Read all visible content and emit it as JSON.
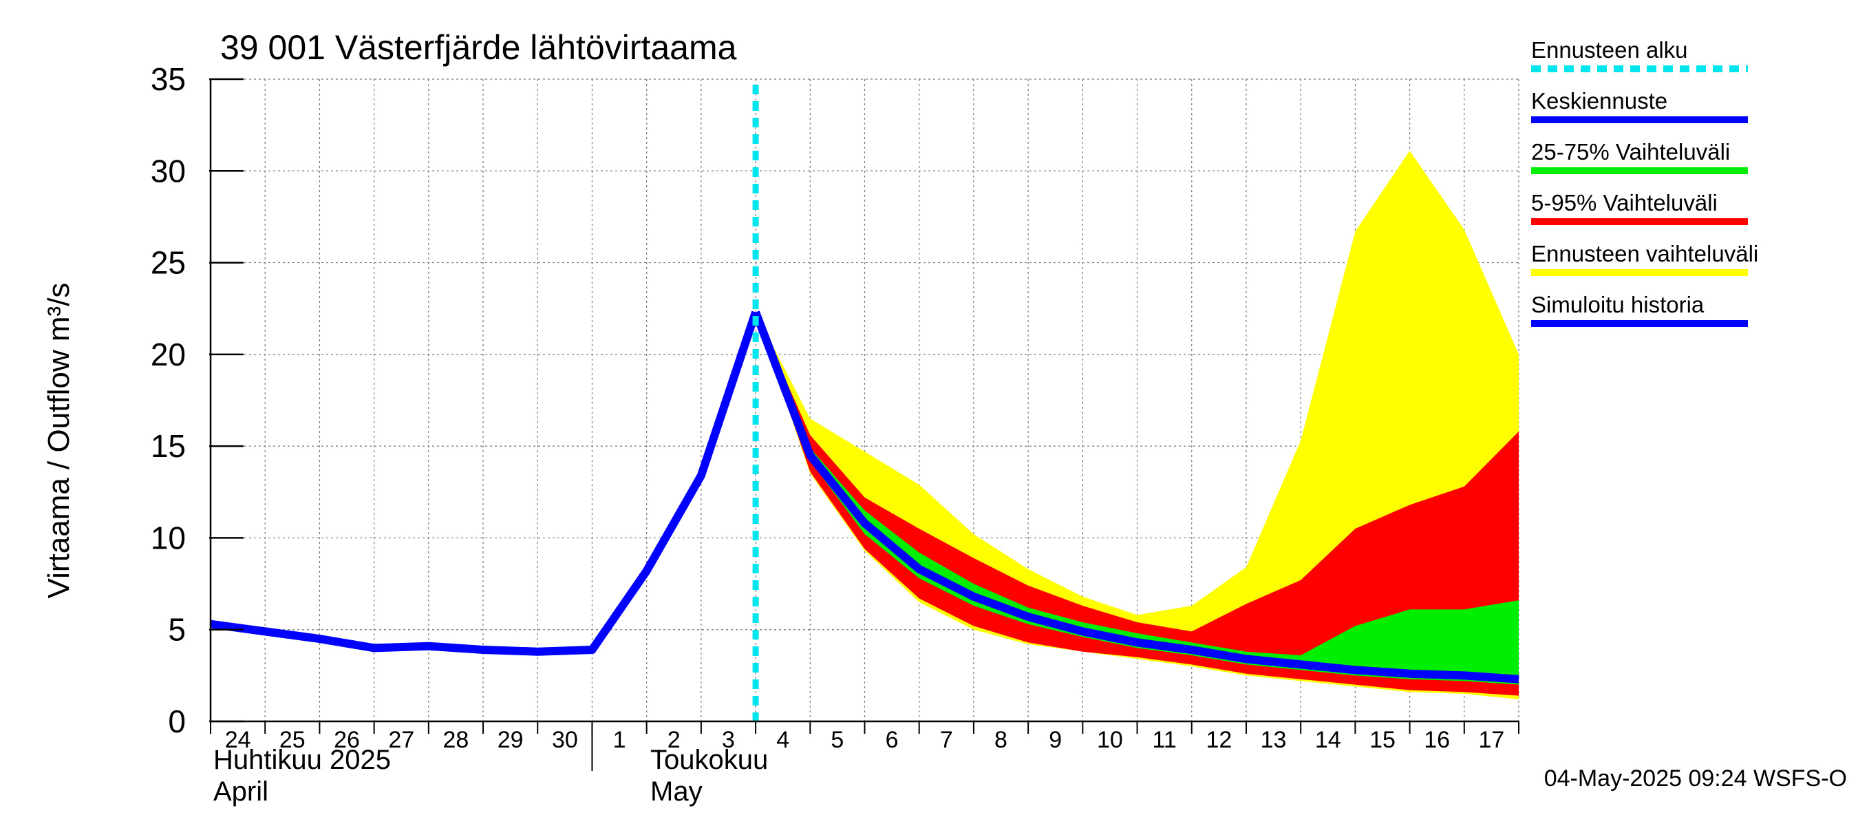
{
  "chart_data": {
    "type": "area",
    "title": "39 001 Västerfjärde lähtövirtaama",
    "ylabel": "Virtaama / Outflow    m³/s",
    "ylim": [
      0,
      35
    ],
    "yticks": [
      0,
      5,
      10,
      15,
      20,
      25,
      30,
      35
    ],
    "x_day_labels": [
      "24",
      "25",
      "26",
      "27",
      "28",
      "29",
      "30",
      "1",
      "2",
      "3",
      "4",
      "5",
      "6",
      "7",
      "8",
      "9",
      "10",
      "11",
      "12",
      "13",
      "14",
      "15",
      "16",
      "17"
    ],
    "month_labels": [
      {
        "fi": "Huhtikuu  2025",
        "en": "April",
        "start_day": 24
      },
      {
        "fi": "Toukokuu",
        "en": "May",
        "start_day": 3
      }
    ],
    "forecast_start_day_index": 10,
    "timestamp": "04-May-2025 09:24 WSFS-O",
    "legend": [
      {
        "label": "Ennusteen alku",
        "color": "#00e5ee",
        "style": "dashed"
      },
      {
        "label": "Keskiennuste",
        "color": "#0000ff",
        "style": "solid"
      },
      {
        "label": "25-75% Vaihteluväli",
        "color": "#00ee00",
        "style": "solid"
      },
      {
        "label": "5-95% Vaihteluväli",
        "color": "#ff0000",
        "style": "solid"
      },
      {
        "label": "Ennusteen vaihteluväli",
        "color": "#ffff00",
        "style": "solid"
      },
      {
        "label": "Simuloitu historia",
        "color": "#0000ff",
        "style": "solid"
      }
    ],
    "series": {
      "history": {
        "name": "Simuloitu historia",
        "x": [
          0,
          1,
          2,
          3,
          4,
          5,
          6,
          7,
          8,
          9,
          10
        ],
        "values": [
          5.3,
          4.9,
          4.5,
          4.0,
          4.1,
          3.9,
          3.8,
          3.9,
          8.2,
          13.4,
          22.3
        ]
      },
      "median": {
        "name": "Keskiennuste",
        "x": [
          10,
          11,
          12,
          13,
          14,
          15,
          16,
          17,
          18,
          19,
          20,
          21,
          22,
          23,
          24
        ],
        "values": [
          22.3,
          14.5,
          10.8,
          8.3,
          6.8,
          5.7,
          4.9,
          4.3,
          3.9,
          3.4,
          3.1,
          2.8,
          2.6,
          2.5,
          2.3
        ]
      },
      "range_full": {
        "name": "Ennusteen vaihteluväli",
        "x": [
          10,
          11,
          12,
          13,
          14,
          15,
          16,
          17,
          18,
          19,
          20,
          21,
          22,
          23,
          24
        ],
        "low": [
          22.3,
          13.5,
          9.3,
          6.5,
          5.0,
          4.2,
          3.8,
          3.4,
          3.0,
          2.5,
          2.2,
          1.9,
          1.6,
          1.5,
          1.2
        ],
        "high": [
          22.3,
          16.5,
          14.7,
          12.9,
          10.2,
          8.3,
          6.8,
          5.8,
          6.3,
          8.4,
          15.3,
          26.7,
          31.1,
          26.8,
          20.0
        ]
      },
      "range_5_95": {
        "name": "5-95% Vaihteluväli",
        "x": [
          10,
          11,
          12,
          13,
          14,
          15,
          16,
          17,
          18,
          19,
          20,
          21,
          22,
          23,
          24
        ],
        "low": [
          22.3,
          13.6,
          9.4,
          6.7,
          5.2,
          4.3,
          3.8,
          3.5,
          3.1,
          2.6,
          2.3,
          2.0,
          1.7,
          1.6,
          1.4
        ],
        "high": [
          22.3,
          15.6,
          12.2,
          10.5,
          8.9,
          7.4,
          6.3,
          5.4,
          4.9,
          6.4,
          7.7,
          10.5,
          11.8,
          12.8,
          15.8
        ]
      },
      "range_25_75": {
        "name": "25-75% Vaihteluväli",
        "x": [
          10,
          11,
          12,
          13,
          14,
          15,
          16,
          17,
          18,
          19,
          20,
          21,
          22,
          23,
          24
        ],
        "low": [
          22.3,
          14.2,
          10.2,
          7.8,
          6.3,
          5.3,
          4.6,
          4.0,
          3.6,
          3.1,
          2.8,
          2.5,
          2.3,
          2.2,
          2.0
        ],
        "high": [
          22.3,
          14.9,
          11.5,
          9.2,
          7.5,
          6.2,
          5.4,
          4.8,
          4.3,
          3.8,
          3.6,
          5.2,
          6.1,
          6.1,
          6.6
        ]
      }
    }
  }
}
